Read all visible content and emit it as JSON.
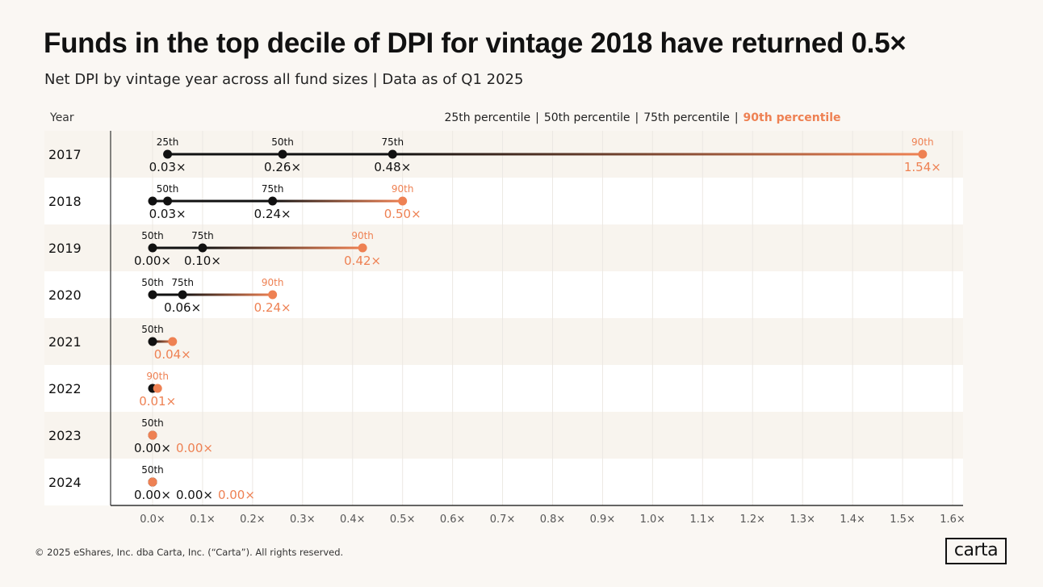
{
  "title": "Funds in the top decile of DPI for vintage 2018 have returned 0.5×",
  "subtitle": "Net DPI by vintage year across all fund sizes | Data as of Q1 2025",
  "year_header": "Year",
  "legend": {
    "items": [
      "25th percentile",
      "50th percentile",
      "75th percentile",
      "90th percentile"
    ],
    "highlight_index": 3
  },
  "colors": {
    "accent": "#ee8153",
    "dark": "#111111",
    "band": "#f8f4ee",
    "background": "#faf7f3"
  },
  "chart_data": {
    "type": "dot-range",
    "xlim": [
      0,
      1.6
    ],
    "x_ticks": [
      "0.0×",
      "0.1×",
      "0.2×",
      "0.3×",
      "0.4×",
      "0.5×",
      "0.6×",
      "0.7×",
      "0.8×",
      "0.9×",
      "1.0×",
      "1.1×",
      "1.2×",
      "1.3×",
      "1.4×",
      "1.5×",
      "1.6×"
    ],
    "grid": true,
    "rows": [
      {
        "year": "2017",
        "points": [
          {
            "pct": "25th",
            "value": 0.03,
            "label": "25th",
            "value_text": "0.03×"
          },
          {
            "pct": "50th",
            "value": 0.26,
            "label": "50th",
            "value_text": "0.26×"
          },
          {
            "pct": "75th",
            "value": 0.48,
            "label": "75th",
            "value_text": "0.48×"
          },
          {
            "pct": "90th",
            "value": 1.54,
            "label": "90th",
            "value_text": "1.54×"
          }
        ]
      },
      {
        "year": "2018",
        "points": [
          {
            "pct": "25th",
            "value": 0.0,
            "label": "",
            "value_text": ""
          },
          {
            "pct": "50th",
            "value": 0.03,
            "label": "50th",
            "value_text": "0.03×"
          },
          {
            "pct": "75th",
            "value": 0.24,
            "label": "75th",
            "value_text": "0.24×"
          },
          {
            "pct": "90th",
            "value": 0.5,
            "label": "90th",
            "value_text": "0.50×"
          }
        ]
      },
      {
        "year": "2019",
        "points": [
          {
            "pct": "50th",
            "value": 0.0,
            "label": "50th",
            "value_text": "0.00×"
          },
          {
            "pct": "75th",
            "value": 0.1,
            "label": "75th",
            "value_text": "0.10×"
          },
          {
            "pct": "90th",
            "value": 0.42,
            "label": "90th",
            "value_text": "0.42×"
          }
        ]
      },
      {
        "year": "2020",
        "points": [
          {
            "pct": "50th",
            "value": 0.0,
            "label": "50th",
            "value_text": ""
          },
          {
            "pct": "75th",
            "value": 0.06,
            "label": "75th",
            "value_text": "0.06×"
          },
          {
            "pct": "90th",
            "value": 0.24,
            "label": "90th",
            "value_text": "0.24×"
          }
        ]
      },
      {
        "year": "2021",
        "points": [
          {
            "pct": "50th",
            "value": 0.0,
            "label": "50th",
            "value_text": ""
          },
          {
            "pct": "90th",
            "value": 0.04,
            "label": "",
            "value_text": "0.04×"
          }
        ]
      },
      {
        "year": "2022",
        "points": [
          {
            "pct": "50th",
            "value": 0.0,
            "label": "",
            "value_text": ""
          },
          {
            "pct": "90th",
            "value": 0.01,
            "label": "90th",
            "value_text": "0.01×"
          }
        ]
      },
      {
        "year": "2023",
        "points": [
          {
            "pct": "50th",
            "value": 0.0,
            "label": "50th",
            "value_text": "0.00×"
          },
          {
            "pct": "90th",
            "value": 0.0,
            "label": "",
            "value_text": "0.00×"
          }
        ]
      },
      {
        "year": "2024",
        "points": [
          {
            "pct": "50th",
            "value": 0.0,
            "label": "50th",
            "value_text": "0.00×"
          },
          {
            "pct": "75th",
            "value": 0.0,
            "label": "",
            "value_text": "0.00×"
          },
          {
            "pct": "90th",
            "value": 0.0,
            "label": "",
            "value_text": "0.00×"
          }
        ]
      }
    ]
  },
  "footer": "© 2025 eShares, Inc. dba Carta, Inc. (“Carta”). All rights reserved.",
  "logo_text": "carta"
}
